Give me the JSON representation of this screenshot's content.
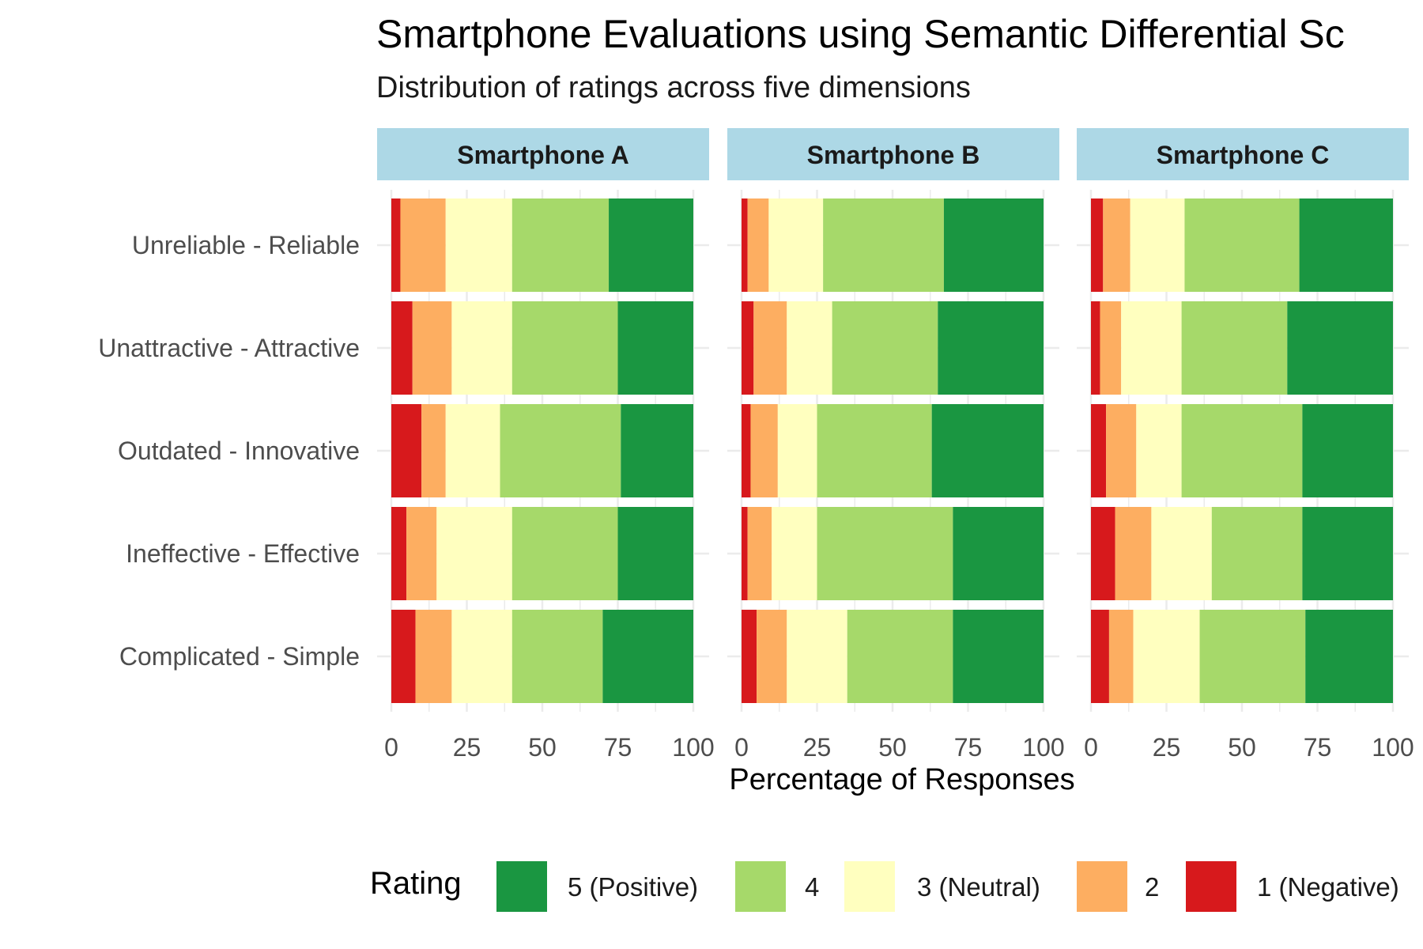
{
  "chart_data": {
    "type": "bar",
    "orientation": "horizontal",
    "stacked": true,
    "title": "Smartphone Evaluations using Semantic Differential Sc",
    "subtitle": "Distribution of ratings across five dimensions",
    "xlabel": "Percentage of Responses",
    "ylabel": "",
    "xlim": [
      0,
      100
    ],
    "xticks": [
      "0",
      "25",
      "50",
      "75",
      "100"
    ],
    "grid": true,
    "legend": {
      "title": "Rating",
      "position": "bottom"
    },
    "categories": [
      "Unreliable - Reliable",
      "Unattractive - Attractive",
      "Outdated - Innovative",
      "Ineffective - Effective",
      "Complicated - Simple"
    ],
    "series": [
      {
        "name": "1 (Negative)",
        "color": "#d7191c"
      },
      {
        "name": "2",
        "color": "#fdae61"
      },
      {
        "name": "3 (Neutral)",
        "color": "#ffffbf"
      },
      {
        "name": "4",
        "color": "#a6d96a"
      },
      {
        "name": "5 (Positive)",
        "color": "#1a9641"
      }
    ],
    "legend_order": [
      "5 (Positive)",
      "4",
      "3 (Neutral)",
      "2",
      "1 (Negative)"
    ],
    "panels": [
      {
        "name": "Smartphone A",
        "values": [
          [
            3,
            15,
            22,
            32,
            28
          ],
          [
            7,
            13,
            20,
            35,
            25
          ],
          [
            10,
            8,
            18,
            40,
            24
          ],
          [
            5,
            10,
            25,
            35,
            25
          ],
          [
            8,
            12,
            20,
            30,
            30
          ]
        ]
      },
      {
        "name": "Smartphone B",
        "values": [
          [
            2,
            7,
            18,
            40,
            33
          ],
          [
            4,
            11,
            15,
            35,
            35
          ],
          [
            3,
            9,
            13,
            38,
            37
          ],
          [
            2,
            8,
            15,
            45,
            30
          ],
          [
            5,
            10,
            20,
            35,
            30
          ]
        ]
      },
      {
        "name": "Smartphone C",
        "values": [
          [
            4,
            9,
            18,
            38,
            31
          ],
          [
            3,
            7,
            20,
            35,
            35
          ],
          [
            5,
            10,
            15,
            40,
            30
          ],
          [
            8,
            12,
            20,
            30,
            30
          ],
          [
            6,
            8,
            22,
            35,
            29
          ]
        ]
      }
    ],
    "strip_color": "#add8e6"
  }
}
